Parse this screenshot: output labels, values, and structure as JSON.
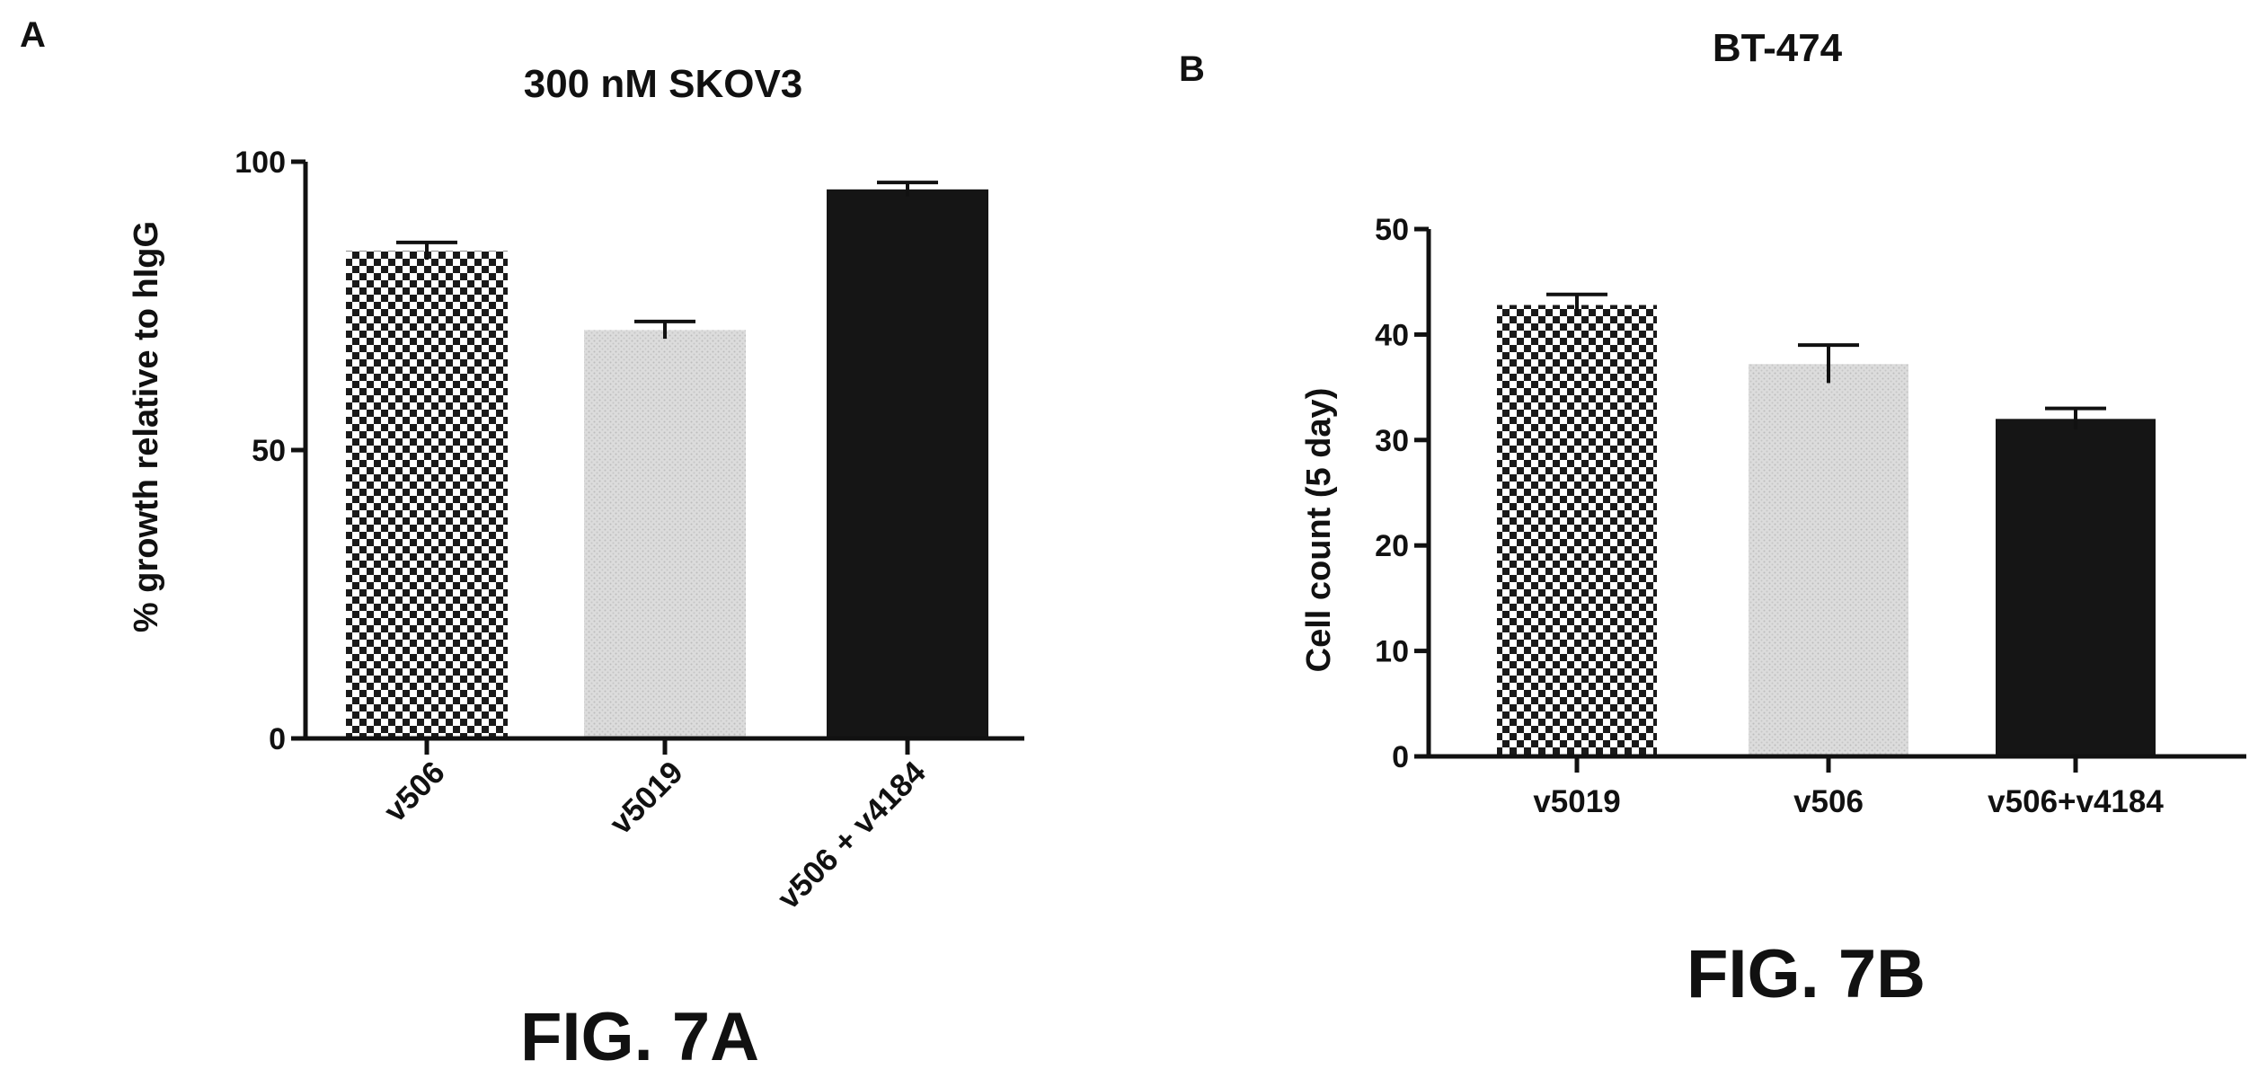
{
  "colors": {
    "ink": "#111111",
    "checker_dark": "#1a1a1a",
    "checker_light": "#ffffff",
    "stipple_base": "#d9d9d9",
    "stipple_dot": "#bdbdbd",
    "solid": "#151515"
  },
  "chart_data": [
    {
      "panel": "A",
      "type": "bar",
      "title": "300 nM  SKOV3",
      "ylabel": "% growth relative to hIgG",
      "xlabel": "",
      "ylim": [
        0,
        100
      ],
      "yticks": [
        0,
        50,
        100
      ],
      "categories": [
        "v506",
        "v5019",
        "v506 + v4184"
      ],
      "values": [
        84.5,
        70.8,
        95.2
      ],
      "errors": [
        1.5,
        1.5,
        1.2
      ],
      "patterns": [
        "checker",
        "stipple",
        "solid"
      ],
      "grid": false,
      "figure_label": "FIG. 7A"
    },
    {
      "panel": "B",
      "type": "bar",
      "title": "BT-474",
      "ylabel": "Cell count (5 day)",
      "xlabel": "",
      "ylim": [
        0,
        50
      ],
      "yticks": [
        0,
        10,
        20,
        30,
        40,
        50
      ],
      "categories": [
        "v5019",
        "v506",
        "v506+v4184"
      ],
      "values": [
        42.8,
        37.2,
        32.0
      ],
      "errors": [
        1.0,
        1.8,
        1.0
      ],
      "patterns": [
        "checker",
        "stipple",
        "solid"
      ],
      "grid": false,
      "figure_label": "FIG. 7B"
    }
  ]
}
